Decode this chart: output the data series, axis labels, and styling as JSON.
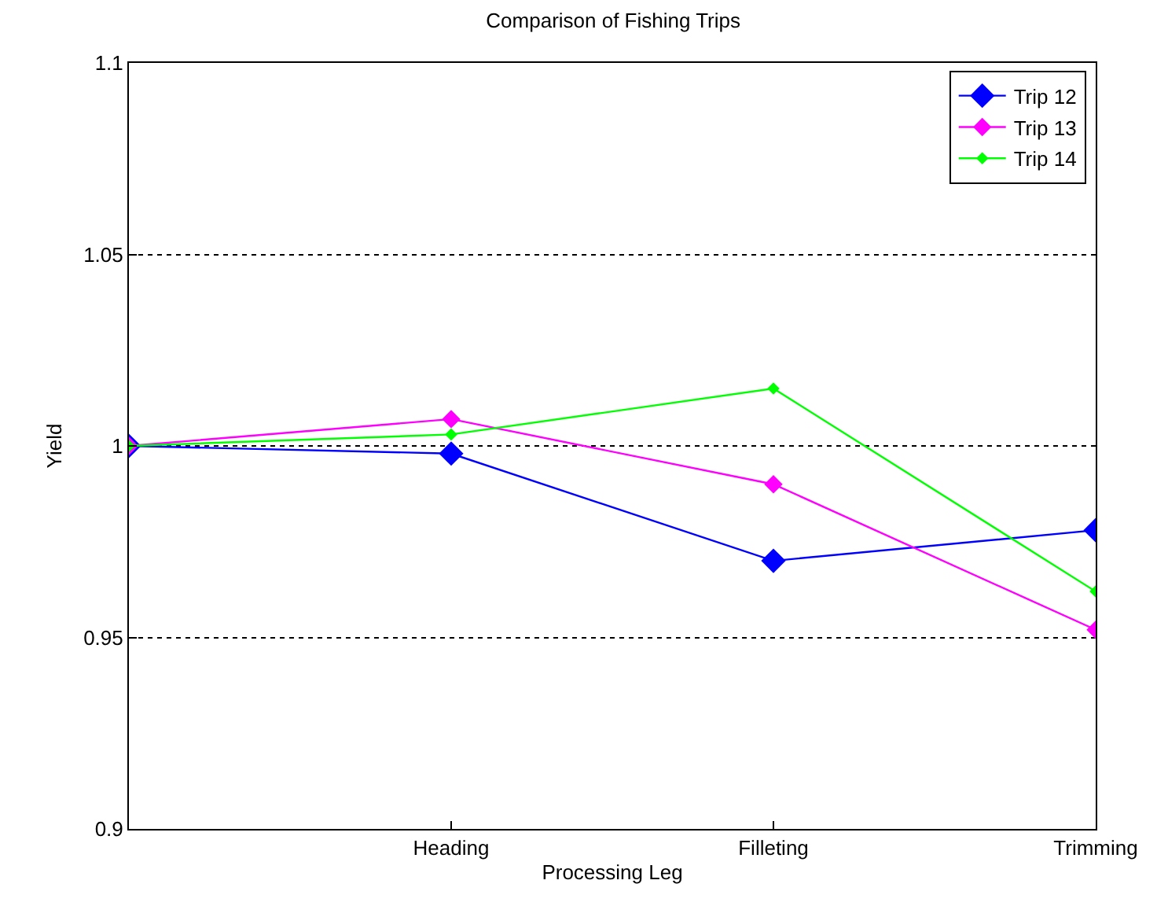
{
  "chart_data": {
    "type": "line",
    "title": "Comparison of Fishing Trips",
    "xlabel": "Processing Leg",
    "ylabel": "Yield",
    "categories": [
      null,
      "Heading",
      "Filleting",
      "Trimming"
    ],
    "series": [
      {
        "name": "Trip 12",
        "color": "#0000ff",
        "values": [
          1.0,
          0.998,
          0.97,
          0.978
        ]
      },
      {
        "name": "Trip 13",
        "color": "#ff00ff",
        "values": [
          1.0,
          1.007,
          0.99,
          0.952
        ]
      },
      {
        "name": "Trip 14",
        "color": "#00ff00",
        "values": [
          1.0,
          1.003,
          1.015,
          0.962
        ]
      }
    ],
    "ylim": [
      0.9,
      1.1
    ],
    "yticks": [
      0.9,
      0.95,
      1,
      1.05,
      1.1
    ],
    "grid": "y",
    "legend": "top right",
    "marker": "diamond",
    "line_style": "solid"
  }
}
